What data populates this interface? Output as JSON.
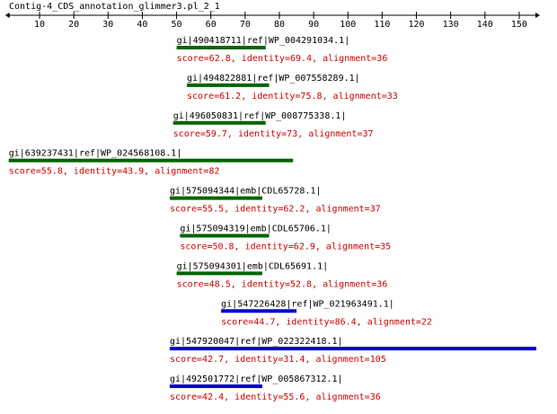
{
  "title": "Contig-4_CDS_annotation_glimmer3.pl_2_1",
  "axis": {
    "xlim": [
      1,
      155
    ],
    "xticks": [
      10,
      20,
      30,
      40,
      50,
      60,
      70,
      80,
      90,
      100,
      110,
      120,
      130,
      140,
      150
    ]
  },
  "hits": [
    {
      "label": "gi|490418711|ref|WP_004291034.1|",
      "score_text": "score=62.8, identity=69.4, alignment=36",
      "start": 50,
      "end": 76,
      "color": "#006400"
    },
    {
      "label": "gi|494822881|ref|WP_007558289.1|",
      "score_text": "score=61.2, identity=75.8, alignment=33",
      "start": 53,
      "end": 77,
      "color": "#006400"
    },
    {
      "label": "gi|496050831|ref|WP_008775338.1|",
      "score_text": "score=59.7, identity=73, alignment=37",
      "start": 49,
      "end": 76,
      "color": "#006400"
    },
    {
      "label": "gi|639237431|ref|WP_024568108.1|",
      "score_text": "score=55.8, identity=43.9, alignment=82",
      "start": 1,
      "end": 84,
      "color": "#006400"
    },
    {
      "label": "gi|575094344|emb|CDL65728.1|",
      "score_text": "score=55.5, identity=62.2, alignment=37",
      "start": 48,
      "end": 75,
      "color": "#006400"
    },
    {
      "label": "gi|575094319|emb|CDL65706.1|",
      "score_text": "score=50.8, identity=62.9, alignment=35",
      "start": 51,
      "end": 77,
      "color": "#006400"
    },
    {
      "label": "gi|575094301|emb|CDL65691.1|",
      "score_text": "score=48.5, identity=52.8, alignment=36",
      "start": 50,
      "end": 75,
      "color": "#006400"
    },
    {
      "label": "gi|547226428|ref|WP_021963491.1|",
      "score_text": "score=44.7, identity=86.4, alignment=22",
      "start": 63,
      "end": 85,
      "color": "#0000cc"
    },
    {
      "label": "gi|547920047|ref|WP_022322418.1|",
      "score_text": "score=42.7, identity=31.4, alignment=105",
      "start": 48,
      "end": 155,
      "color": "#0000cc"
    },
    {
      "label": "gi|492501772|ref|WP_005867312.1|",
      "score_text": "score=42.4, identity=55.6, alignment=36",
      "start": 48,
      "end": 75,
      "color": "#0000cc"
    }
  ]
}
